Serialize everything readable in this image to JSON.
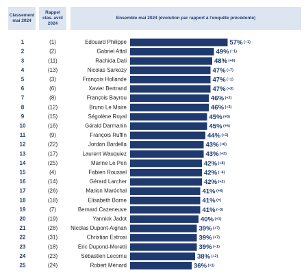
{
  "chart_data": {
    "type": "bar",
    "column_headers": [
      "Classement mai 2024",
      "Rappel clas. avril 2024",
      "Ensemble mai 2024 (évolution par rapport à l'enquête précédente)"
    ],
    "ranks": [
      1,
      2,
      3,
      4,
      5,
      6,
      7,
      8,
      9,
      10,
      11,
      12,
      13,
      14,
      15,
      16,
      17,
      18,
      19,
      20,
      21,
      22,
      23,
      24,
      25
    ],
    "previous_ranks": [
      "(1)",
      "(2)",
      "(11)",
      "(13)",
      "(3)",
      "(6)",
      "(8)",
      "(12)",
      "(15)",
      "(16)",
      "(9)",
      "(22)",
      "(17)",
      "(25)",
      "(4)",
      "(14)",
      "(26)",
      "(18)",
      "(7)",
      "(19)",
      "(28)",
      "(31)",
      "(18)",
      "(23)",
      "(24)"
    ],
    "categories": [
      "Edouard Philippe",
      "Gabriel Attal",
      "Rachida Dati",
      "Nicolas Sarkozy",
      "François Hollande",
      "Xavier Bertrand",
      "François Bayrou",
      "Bruno Le Maire",
      "Ségolène Royal",
      "Gérald Darmanin",
      "François Ruffin",
      "Jordan Bardella",
      "Laurent Wauquiez",
      "Marine Le Pen",
      "Fabien Roussel",
      "Gérard Larcher",
      "Marion Maréchal",
      "Elisabeth Borne",
      "Bernard Cazeneuve",
      "Yannick Jadot",
      "Nicolas Dupont-Aignan",
      "Christian Estrosi",
      "Eric Dupond-Moretti",
      "Sébastien Lecornu",
      "Robert Ménard"
    ],
    "values": [
      57,
      49,
      48,
      47,
      47,
      47,
      46,
      46,
      45,
      45,
      44,
      43,
      43,
      42,
      42,
      42,
      41,
      41,
      41,
      40,
      39,
      39,
      39,
      38,
      36
    ],
    "value_labels": [
      "57%",
      "49%",
      "48%",
      "47%",
      "47%",
      "47%",
      "46%",
      "46%",
      "45%",
      "45%",
      "44%",
      "43%",
      "43%",
      "42%",
      "42%",
      "42%",
      "41%",
      "41%",
      "41%",
      "40%",
      "39%",
      "39%",
      "39%",
      "38%",
      "36%"
    ],
    "changes": [
      "(−1)",
      "(−1)",
      "(+6)",
      "(+7)",
      "(−1)",
      "(+3)",
      "(+2)",
      "(+3)",
      "(+5)",
      "(+5)",
      "(+1)",
      "(+6)",
      "(+3)",
      "(+8)",
      "(−4)",
      "(+2)",
      "(+8)",
      "(=)",
      "(−3)",
      "(+1)",
      "(+7)",
      "(+7)",
      "(−1)",
      "(+2)",
      "(+1)"
    ],
    "color": "#1f3a6e",
    "xlim": [
      0,
      60
    ]
  }
}
